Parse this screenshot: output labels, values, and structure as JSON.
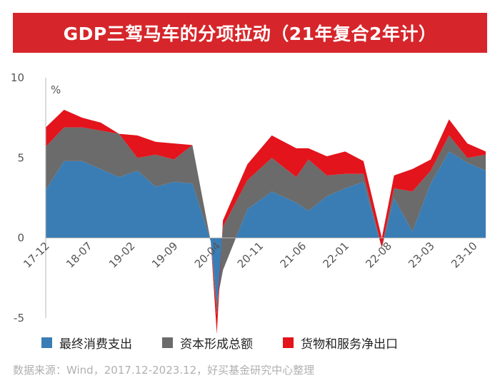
{
  "title": "GDP三驾马车的分项拉动（21年复合2年计）",
  "source": "数据来源：Wind，2017.12-2023.12，好买基金研究中心整理",
  "colors": {
    "consumption": "#3a7db5",
    "capital": "#6b6b6b",
    "net_exports": "#e3141c",
    "title_bg": "#d6262b"
  },
  "chart_data": {
    "type": "area",
    "stacked": true,
    "unit_label": "%",
    "ylim": [
      -5,
      10
    ],
    "yticks": [
      10,
      5,
      0,
      -5
    ],
    "xtick_labels": [
      {
        "label": "17-12",
        "index": 0
      },
      {
        "label": "18-07",
        "index": 7
      },
      {
        "label": "19-02",
        "index": 14
      },
      {
        "label": "19-09",
        "index": 21
      },
      {
        "label": "20-04",
        "index": 28
      },
      {
        "label": "20-11",
        "index": 35
      },
      {
        "label": "21-06",
        "index": 42
      },
      {
        "label": "22-01",
        "index": 49
      },
      {
        "label": "22-08",
        "index": 56
      },
      {
        "label": "23-03",
        "index": 63
      },
      {
        "label": "23-10",
        "index": 70
      }
    ],
    "x_count": 73,
    "series": [
      {
        "name": "最终消费支出",
        "points": [
          [
            0,
            3.0
          ],
          [
            3,
            4.8
          ],
          [
            6,
            4.8
          ],
          [
            9,
            4.3
          ],
          [
            12,
            3.8
          ],
          [
            15,
            4.2
          ],
          [
            18,
            3.2
          ],
          [
            21,
            3.5
          ],
          [
            24,
            3.4
          ],
          [
            27,
            -0.2
          ],
          [
            28,
            -4.0
          ],
          [
            29,
            -2.0
          ],
          [
            33,
            1.8
          ],
          [
            37,
            2.9
          ],
          [
            41,
            2.2
          ],
          [
            43,
            1.7
          ],
          [
            46,
            2.6
          ],
          [
            49,
            3.1
          ],
          [
            52,
            3.5
          ],
          [
            55,
            -0.6
          ],
          [
            57,
            2.5
          ],
          [
            60,
            0.4
          ],
          [
            63,
            3.4
          ],
          [
            66,
            5.4
          ],
          [
            69,
            4.7
          ],
          [
            72,
            4.2
          ]
        ]
      },
      {
        "name": "资本形成总额",
        "points": [
          [
            0,
            2.7
          ],
          [
            3,
            2.1
          ],
          [
            6,
            2.1
          ],
          [
            9,
            2.4
          ],
          [
            12,
            2.7
          ],
          [
            15,
            0.8
          ],
          [
            18,
            2.0
          ],
          [
            21,
            1.4
          ],
          [
            24,
            2.4
          ],
          [
            27,
            0.0
          ],
          [
            28,
            -0.8
          ],
          [
            29,
            2.7
          ],
          [
            33,
            1.8
          ],
          [
            37,
            2.1
          ],
          [
            41,
            1.6
          ],
          [
            43,
            3.2
          ],
          [
            46,
            1.3
          ],
          [
            49,
            0.9
          ],
          [
            52,
            0.5
          ],
          [
            55,
            0.0
          ],
          [
            57,
            0.6
          ],
          [
            60,
            2.5
          ],
          [
            63,
            0.8
          ],
          [
            66,
            1.0
          ],
          [
            69,
            0.3
          ],
          [
            72,
            1.0
          ]
        ]
      },
      {
        "name": "货物和服务净出口",
        "points": [
          [
            0,
            1.2
          ],
          [
            3,
            1.1
          ],
          [
            6,
            0.6
          ],
          [
            9,
            0.5
          ],
          [
            12,
            0.0
          ],
          [
            15,
            1.4
          ],
          [
            18,
            0.8
          ],
          [
            21,
            1.0
          ],
          [
            24,
            0.0
          ],
          [
            27,
            0.0
          ],
          [
            28,
            -1.2
          ],
          [
            29,
            0.4
          ],
          [
            33,
            1.0
          ],
          [
            37,
            1.4
          ],
          [
            41,
            1.8
          ],
          [
            43,
            0.7
          ],
          [
            46,
            1.2
          ],
          [
            49,
            1.4
          ],
          [
            52,
            0.8
          ],
          [
            55,
            0.6
          ],
          [
            57,
            0.8
          ],
          [
            60,
            1.4
          ],
          [
            63,
            0.7
          ],
          [
            66,
            1.0
          ],
          [
            69,
            0.9
          ],
          [
            72,
            0.2
          ]
        ]
      }
    ]
  }
}
